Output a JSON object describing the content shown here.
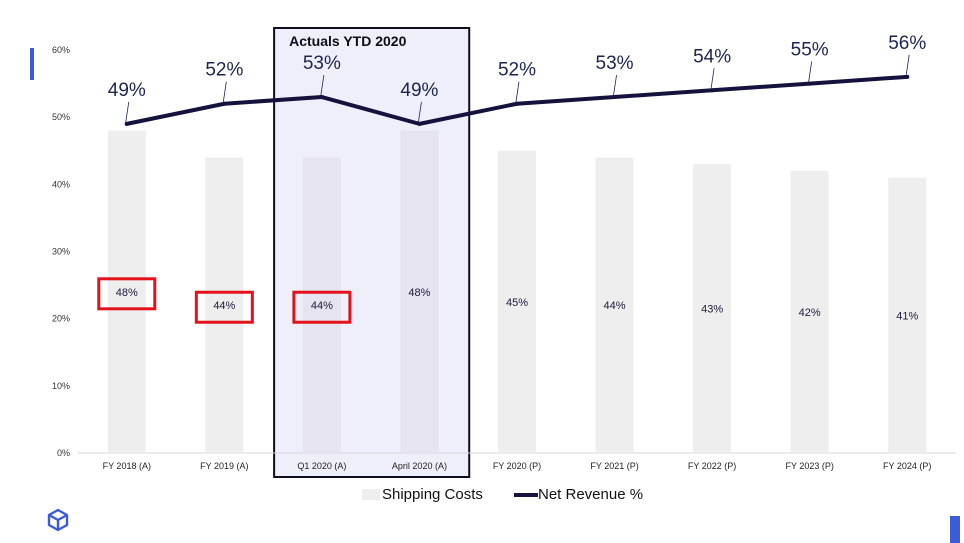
{
  "chart_data": {
    "type": "bar",
    "categories": [
      "FY 2018 (A)",
      "FY 2019 (A)",
      "Q1 2020 (A)",
      "April 2020 (A)",
      "FY 2020 (P)",
      "FY 2021 (P)",
      "FY 2022 (P)",
      "FY 2023 (P)",
      "FY 2024 (P)"
    ],
    "series": [
      {
        "name": "Shipping Costs",
        "kind": "bar",
        "values": [
          48,
          44,
          44,
          48,
          45,
          44,
          43,
          42,
          41
        ],
        "labels": [
          "48%",
          "44%",
          "44%",
          "48%",
          "45%",
          "44%",
          "43%",
          "42%",
          "41%"
        ],
        "color": "#eeeeef"
      },
      {
        "name": "Net Revenue %",
        "kind": "line",
        "values": [
          49,
          52,
          53,
          49,
          52,
          53,
          54,
          55,
          56
        ],
        "labels": [
          "49%",
          "52%",
          "53%",
          "49%",
          "52%",
          "53%",
          "54%",
          "55%",
          "56%"
        ],
        "color": "#15133d"
      }
    ],
    "yticks": [
      "0%",
      "10%",
      "20%",
      "30%",
      "40%",
      "50%",
      "60%"
    ],
    "ylim": [
      0,
      60
    ],
    "highlight": {
      "label": "Actuals YTD 2020",
      "categories": [
        "Q1 2020 (A)",
        "April 2020 (A)"
      ],
      "fill": "#efeefb"
    },
    "boxed_labels": [
      "FY 2018 (A)",
      "FY 2019 (A)",
      "Q1 2020 (A)"
    ],
    "legend_position": "bottom-center",
    "grid": false
  },
  "colors": {
    "accent": "#3b5bdb",
    "box_outline": "#e3121b",
    "text": "#1a1a3a"
  },
  "logo_icon": "cube-logo-icon"
}
